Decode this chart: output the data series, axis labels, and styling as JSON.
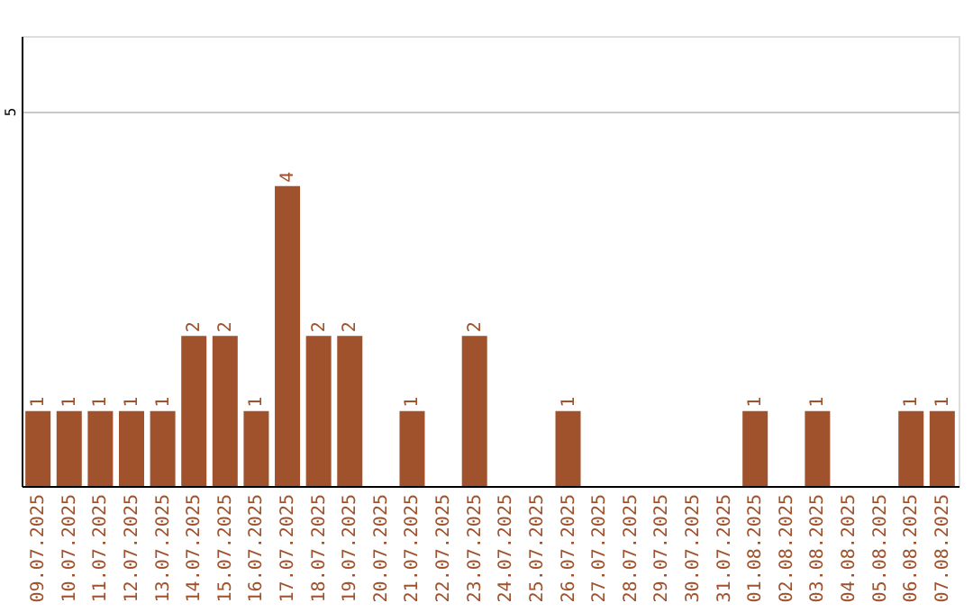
{
  "chart_data": {
    "type": "bar",
    "categories": [
      "09.07.2025",
      "10.07.2025",
      "11.07.2025",
      "12.07.2025",
      "13.07.2025",
      "14.07.2025",
      "15.07.2025",
      "16.07.2025",
      "17.07.2025",
      "18.07.2025",
      "19.07.2025",
      "20.07.2025",
      "21.07.2025",
      "22.07.2025",
      "23.07.2025",
      "24.07.2025",
      "25.07.2025",
      "26.07.2025",
      "27.07.2025",
      "28.07.2025",
      "29.07.2025",
      "30.07.2025",
      "31.07.2025",
      "01.08.2025",
      "02.08.2025",
      "03.08.2025",
      "04.08.2025",
      "05.08.2025",
      "06.08.2025",
      "07.08.2025"
    ],
    "values": [
      1,
      1,
      1,
      1,
      1,
      2,
      2,
      1,
      4,
      2,
      2,
      0,
      1,
      0,
      2,
      0,
      0,
      1,
      0,
      0,
      0,
      0,
      0,
      1,
      0,
      1,
      0,
      0,
      1,
      1
    ],
    "value_labels": [
      "1",
      "1",
      "1",
      "1",
      "1",
      "2",
      "2",
      "1",
      "4",
      "2",
      "2",
      null,
      "1",
      null,
      "2",
      null,
      null,
      "1",
      null,
      null,
      null,
      null,
      null,
      "1",
      null,
      "1",
      null,
      null,
      "1",
      "1"
    ],
    "color": "#a0522d",
    "ylim": [
      0,
      6
    ],
    "yticks": [
      5
    ],
    "grid": "y"
  }
}
